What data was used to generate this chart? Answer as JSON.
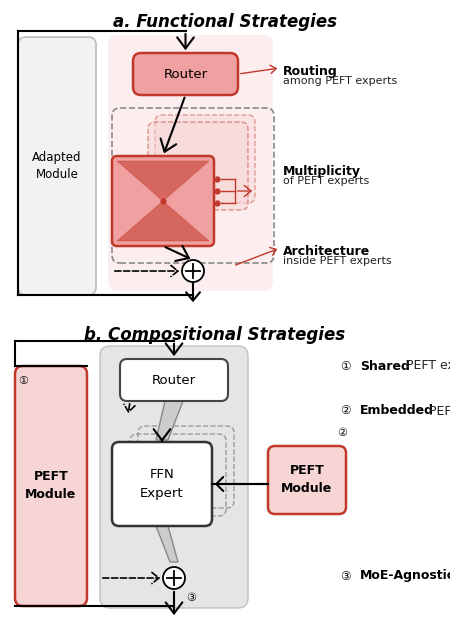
{
  "title_a": "a. Functional Strategies",
  "title_b": "b. Compositional Strategies",
  "bg_color": "#ffffff",
  "red_fill": "#f0a0a0",
  "red_border": "#c0392b",
  "light_red_fill": "#f8d5d5",
  "light_pink_bg": "#fce8e8",
  "gray_fill": "#e0e0e0",
  "light_gray_fill": "#eeeeee",
  "white_fill": "#ffffff",
  "adapted_module_text": "Adapted\nModule",
  "router_text": "Router",
  "peft_module_text": "PEFT\nModule",
  "ffn_expert_text": "FFN\nExpert",
  "peft_module_b_text": "PEFT\nModule"
}
